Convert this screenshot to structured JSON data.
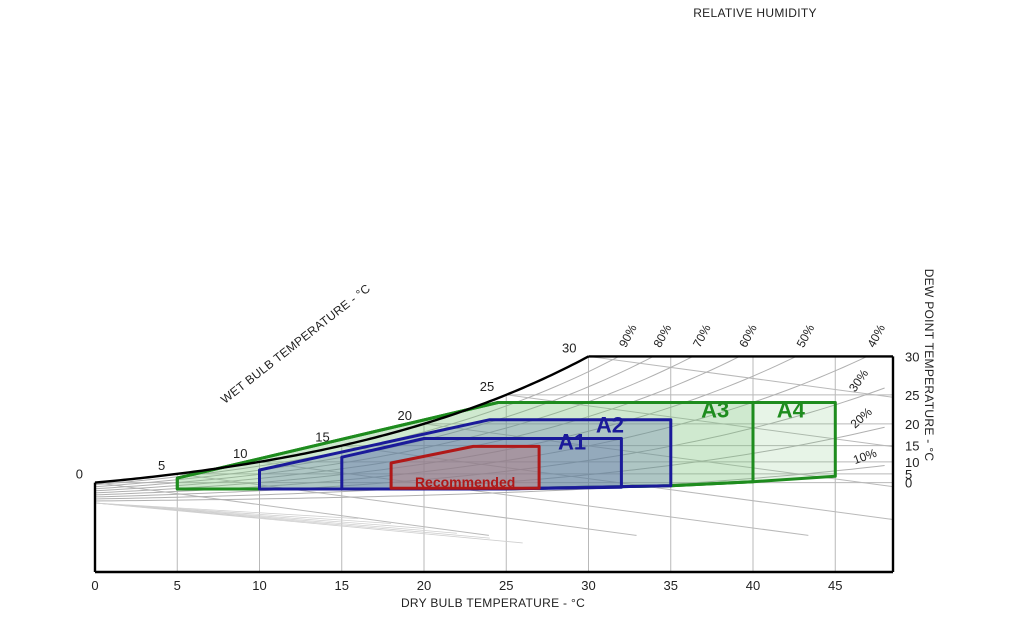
{
  "chart_data": {
    "type": "psychrometric",
    "top_title": "RELATIVE HUMIDITY",
    "xlabel": "DRY BULB TEMPERATURE - °C",
    "left_label": "WET BULB TEMPERATURE - °C",
    "right_label": "DEW POINT TEMPERATURE - °C",
    "x_ticks": [
      "0",
      "5",
      "10",
      "15",
      "20",
      "25",
      "30",
      "35",
      "40",
      "45"
    ],
    "wet_bulb_ticks": [
      "0",
      "5",
      "10",
      "15",
      "20",
      "25",
      "30"
    ],
    "dew_point_ticks": [
      "30",
      "25",
      "20",
      "15",
      "10",
      "5",
      "0"
    ],
    "rh_curves": [
      {
        "label": "90%",
        "rh": 90
      },
      {
        "label": "80%",
        "rh": 80
      },
      {
        "label": "70%",
        "rh": 70
      },
      {
        "label": "60%",
        "rh": 60
      },
      {
        "label": "50%",
        "rh": 50
      },
      {
        "label": "40%",
        "rh": 40
      },
      {
        "label": "30%",
        "rh": 30
      },
      {
        "label": "20%",
        "rh": 20
      },
      {
        "label": "10%",
        "rh": 10
      }
    ],
    "zones": [
      {
        "name": "A4",
        "color": "#1e8c1e",
        "fill": "#7cc47c",
        "fill_opacity": 0.18,
        "points": [
          [
            5,
            -5
          ],
          [
            5,
            2.8
          ],
          [
            24.5,
            23.8
          ],
          [
            45,
            23.8
          ],
          [
            45,
            3.8
          ],
          [
            40,
            0.6
          ],
          [
            35,
            -2.2
          ],
          [
            24.5,
            -5
          ]
        ]
      },
      {
        "name": "A3",
        "color": "#1e8c1e",
        "fill": "#7cc47c",
        "fill_opacity": 0.22,
        "points": [
          [
            5,
            -5
          ],
          [
            5,
            2.8
          ],
          [
            24.5,
            23.8
          ],
          [
            40,
            23.8
          ],
          [
            40,
            0.6
          ],
          [
            35,
            -2.2
          ],
          [
            24.5,
            -5
          ]
        ]
      },
      {
        "name": "A2",
        "color": "#1a1a9a",
        "fill": "#5a6aa8",
        "fill_opacity": 0.28,
        "points": [
          [
            10,
            -5
          ],
          [
            10,
            6.8
          ],
          [
            24,
            20.8
          ],
          [
            35,
            20.8
          ],
          [
            35,
            -2.2
          ],
          [
            24.5,
            -5
          ]
        ]
      },
      {
        "name": "A1",
        "color": "#1a1a9a",
        "fill": "#5a6aa8",
        "fill_opacity": 0.3,
        "points": [
          [
            15,
            -5
          ],
          [
            15,
            11.6
          ],
          [
            20,
            16.8
          ],
          [
            32,
            16.8
          ],
          [
            32,
            -3.4
          ],
          [
            24.5,
            -5
          ]
        ]
      },
      {
        "name": "Recommended",
        "color": "#b01818",
        "fill": "#c07878",
        "fill_opacity": 0.4,
        "points": [
          [
            18,
            -4.3
          ],
          [
            18,
            9.6
          ],
          [
            23,
            14.8
          ],
          [
            27,
            14.8
          ],
          [
            27,
            -4.3
          ]
        ]
      }
    ],
    "zone_labels": [
      {
        "text": "A3",
        "x": 37.7,
        "y": 21.2,
        "color": "#1e8c1e"
      },
      {
        "text": "A4",
        "x": 42.3,
        "y": 21.2,
        "color": "#1e8c1e"
      },
      {
        "text": "A2",
        "x": 31.3,
        "y": 18.2,
        "color": "#1a1a9a"
      },
      {
        "text": "A1",
        "x": 29.0,
        "y": 14.0,
        "color": "#1a1a9a"
      },
      {
        "text": "Recommended",
        "x": 22.5,
        "y": -3.2,
        "color": "#b01818"
      }
    ]
  }
}
